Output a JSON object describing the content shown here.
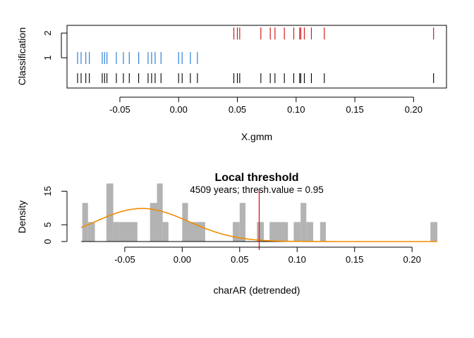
{
  "chart_data": [
    {
      "type": "scatter",
      "variant": "rug-classification",
      "xlabel": "X.gmm",
      "ylabel": "Classification",
      "xlim": [
        -0.095,
        0.228
      ],
      "x_ticks": [
        -0.05,
        0.0,
        0.05,
        0.1,
        0.15,
        0.2
      ],
      "x_tick_labels": [
        "-0.05",
        "0.00",
        "0.05",
        "0.10",
        "0.15",
        "0.20"
      ],
      "y_ticks": [
        1,
        2
      ],
      "y_tick_labels": [
        "1",
        "2"
      ],
      "series": [
        {
          "class": 1,
          "color": "#2f7fd6",
          "values": [
            -0.086,
            -0.083,
            -0.079,
            -0.076,
            -0.065,
            -0.063,
            -0.061,
            -0.053,
            -0.047,
            -0.042,
            -0.034,
            -0.026,
            -0.023,
            -0.02,
            -0.015,
            0.0,
            0.003,
            0.01,
            0.016
          ]
        },
        {
          "class": 2,
          "color": "#d01c1c",
          "values": [
            0.047,
            0.05,
            0.052,
            0.07,
            0.078,
            0.082,
            0.09,
            0.098,
            0.103,
            0.104,
            0.107,
            0.113,
            0.124,
            0.217
          ]
        }
      ],
      "rug": {
        "color": "#000000",
        "values": [
          -0.086,
          -0.083,
          -0.079,
          -0.076,
          -0.065,
          -0.063,
          -0.061,
          -0.053,
          -0.047,
          -0.042,
          -0.034,
          -0.026,
          -0.023,
          -0.02,
          -0.015,
          0.0,
          0.003,
          0.01,
          0.016,
          0.047,
          0.05,
          0.052,
          0.07,
          0.078,
          0.082,
          0.09,
          0.098,
          0.103,
          0.104,
          0.107,
          0.113,
          0.124,
          0.217
        ]
      }
    },
    {
      "type": "bar",
      "variant": "histogram-with-density",
      "title": "Local threshold",
      "subtitle": "4509 years; thresh.value = 0.95",
      "xlabel": "charAR (detrended)",
      "ylabel": "Density",
      "xlim": [
        -0.088,
        0.222
      ],
      "ylim": [
        0,
        17
      ],
      "x_ticks": [
        -0.05,
        0.0,
        0.05,
        0.1,
        0.15,
        0.2
      ],
      "x_tick_labels": [
        "-0.05",
        "0.00",
        "0.05",
        "0.10",
        "0.15",
        "0.20"
      ],
      "y_ticks": [
        0,
        5,
        15
      ],
      "y_tick_labels": [
        "0",
        "5",
        "15"
      ],
      "bar_color": "#b3b3b3",
      "bins": [
        {
          "x0": -0.087,
          "x1": -0.082,
          "value": 11.5
        },
        {
          "x0": -0.082,
          "x1": -0.076,
          "value": 5.8
        },
        {
          "x0": -0.066,
          "x1": -0.06,
          "value": 17.3
        },
        {
          "x0": -0.06,
          "x1": -0.055,
          "value": 5.8
        },
        {
          "x0": -0.055,
          "x1": -0.039,
          "value": 5.8
        },
        {
          "x0": -0.028,
          "x1": -0.022,
          "value": 11.5
        },
        {
          "x0": -0.022,
          "x1": -0.017,
          "value": 17.3
        },
        {
          "x0": -0.017,
          "x1": -0.012,
          "value": 5.8
        },
        {
          "x0": 0.0,
          "x1": 0.005,
          "value": 11.5
        },
        {
          "x0": 0.005,
          "x1": 0.02,
          "value": 5.8
        },
        {
          "x0": 0.044,
          "x1": 0.05,
          "value": 5.8
        },
        {
          "x0": 0.05,
          "x1": 0.055,
          "value": 11.5
        },
        {
          "x0": 0.065,
          "x1": 0.071,
          "value": 5.8
        },
        {
          "x0": 0.076,
          "x1": 0.092,
          "value": 5.8
        },
        {
          "x0": 0.097,
          "x1": 0.103,
          "value": 5.8
        },
        {
          "x0": 0.103,
          "x1": 0.108,
          "value": 11.5
        },
        {
          "x0": 0.108,
          "x1": 0.114,
          "value": 5.8
        },
        {
          "x0": 0.12,
          "x1": 0.125,
          "value": 5.8
        },
        {
          "x0": 0.216,
          "x1": 0.222,
          "value": 5.8
        }
      ],
      "density_curve": {
        "color": "#f08c00",
        "mean": -0.035,
        "sd": 0.0405,
        "scale": 1.0
      },
      "threshold": {
        "value": 0.067,
        "color": "#e8221c"
      }
    }
  ]
}
